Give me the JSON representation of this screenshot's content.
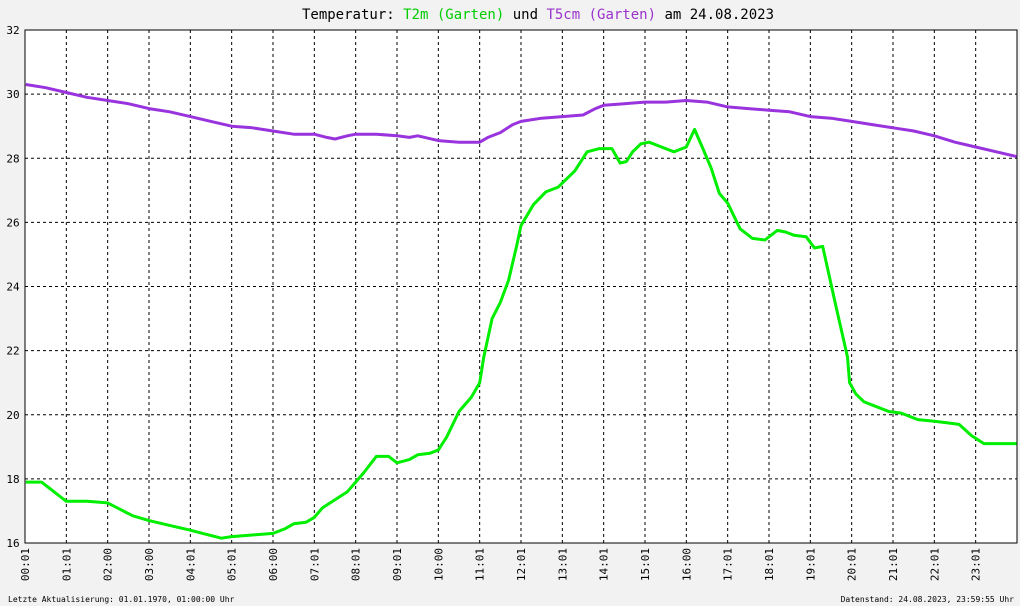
{
  "chart_data": {
    "type": "line",
    "title_parts": [
      {
        "key": "prefix",
        "text": "Temperatur: ",
        "color": "#000000"
      },
      {
        "key": "series1",
        "text": "T2m (Garten)",
        "color": "#00cc00"
      },
      {
        "key": "joiner",
        "text": " und ",
        "color": "#000000"
      },
      {
        "key": "series2",
        "text": "T5cm (Garten)",
        "color": "#9933cc"
      },
      {
        "key": "suffix",
        "text": " am 24.08.2023",
        "color": "#000000"
      }
    ],
    "x_tick_labels": [
      "00:01",
      "01:01",
      "02:00",
      "03:00",
      "04:01",
      "05:01",
      "06:00",
      "07:01",
      "08:01",
      "09:01",
      "10:00",
      "11:01",
      "12:01",
      "13:01",
      "14:01",
      "15:01",
      "16:00",
      "17:01",
      "18:01",
      "19:01",
      "20:01",
      "21:01",
      "22:01",
      "23:01"
    ],
    "xlim": [
      0,
      24
    ],
    "ylim": [
      16,
      32
    ],
    "y_ticks": [
      16,
      18,
      20,
      22,
      24,
      26,
      28,
      30,
      32
    ],
    "grid": true,
    "series": [
      {
        "name": "T2m (Garten)",
        "color": "#00ee00",
        "x": [
          0.02,
          0.4,
          0.6,
          0.85,
          1.0,
          1.5,
          2.0,
          2.3,
          2.6,
          3.0,
          3.5,
          4.0,
          4.3,
          4.6,
          4.75,
          5.0,
          5.5,
          6.0,
          6.3,
          6.5,
          6.8,
          7.0,
          7.2,
          7.5,
          7.8,
          8.0,
          8.2,
          8.5,
          8.8,
          9.0,
          9.3,
          9.5,
          9.8,
          10.0,
          10.2,
          10.5,
          10.8,
          11.0,
          11.1,
          11.3,
          11.5,
          11.7,
          11.9,
          12.0,
          12.3,
          12.6,
          12.9,
          13.3,
          13.6,
          13.9,
          14.2,
          14.4,
          14.55,
          14.7,
          14.9,
          15.1,
          15.4,
          15.7,
          16.0,
          16.2,
          16.3,
          16.4,
          16.6,
          16.8,
          17.0,
          17.3,
          17.6,
          17.9,
          18.2,
          18.4,
          18.6,
          18.9,
          19.1,
          19.3,
          19.6,
          19.9,
          19.95,
          20.1,
          20.3,
          20.6,
          20.9,
          21.2,
          21.6,
          22.0,
          22.3,
          22.6,
          22.9,
          23.2,
          23.5,
          23.8,
          23.99
        ],
        "values": [
          17.9,
          17.9,
          17.7,
          17.45,
          17.3,
          17.3,
          17.25,
          17.05,
          16.85,
          16.7,
          16.55,
          16.4,
          16.3,
          16.2,
          16.15,
          16.2,
          16.25,
          16.3,
          16.45,
          16.6,
          16.65,
          16.8,
          17.1,
          17.35,
          17.6,
          17.9,
          18.2,
          18.7,
          18.7,
          18.5,
          18.6,
          18.75,
          18.8,
          18.9,
          19.3,
          20.1,
          20.55,
          21.0,
          21.8,
          23.0,
          23.5,
          24.2,
          25.3,
          25.9,
          26.55,
          26.95,
          27.1,
          27.6,
          28.2,
          28.3,
          28.3,
          27.85,
          27.9,
          28.2,
          28.45,
          28.5,
          28.35,
          28.2,
          28.35,
          28.9,
          28.6,
          28.3,
          27.7,
          26.9,
          26.6,
          25.8,
          25.5,
          25.45,
          25.75,
          25.7,
          25.6,
          25.55,
          25.2,
          25.25,
          23.5,
          21.8,
          21.0,
          20.65,
          20.4,
          20.25,
          20.1,
          20.05,
          19.85,
          19.8,
          19.75,
          19.7,
          19.35,
          19.1,
          19.1,
          19.1,
          19.1
        ]
      },
      {
        "name": "T5cm (Garten)",
        "color": "#9933dd",
        "x": [
          0.02,
          0.5,
          1.0,
          1.5,
          2.0,
          2.5,
          3.0,
          3.5,
          4.0,
          4.5,
          5.0,
          5.5,
          6.0,
          6.5,
          7.0,
          7.3,
          7.5,
          7.8,
          8.0,
          8.5,
          9.0,
          9.3,
          9.5,
          10.0,
          10.5,
          11.0,
          11.2,
          11.5,
          11.8,
          12.0,
          12.5,
          13.0,
          13.5,
          13.8,
          14.0,
          14.5,
          15.0,
          15.5,
          16.0,
          16.5,
          17.0,
          17.5,
          18.0,
          18.5,
          19.0,
          19.5,
          20.0,
          20.5,
          21.0,
          21.5,
          22.0,
          22.5,
          23.0,
          23.5,
          23.99
        ],
        "values": [
          30.3,
          30.2,
          30.05,
          29.9,
          29.8,
          29.7,
          29.55,
          29.45,
          29.3,
          29.15,
          29.0,
          28.95,
          28.85,
          28.75,
          28.75,
          28.65,
          28.6,
          28.7,
          28.75,
          28.75,
          28.7,
          28.65,
          28.7,
          28.55,
          28.5,
          28.5,
          28.65,
          28.8,
          29.05,
          29.15,
          29.25,
          29.3,
          29.35,
          29.55,
          29.65,
          29.7,
          29.75,
          29.75,
          29.8,
          29.75,
          29.6,
          29.55,
          29.5,
          29.45,
          29.3,
          29.25,
          29.15,
          29.05,
          28.95,
          28.85,
          28.7,
          28.5,
          28.35,
          28.2,
          28.05
        ]
      }
    ]
  },
  "footer": {
    "left": "Letzte Aktualisierung: 01.01.1970, 01:00:00 Uhr",
    "right": "Datenstand: 24.08.2023, 23:59:55 Uhr"
  }
}
